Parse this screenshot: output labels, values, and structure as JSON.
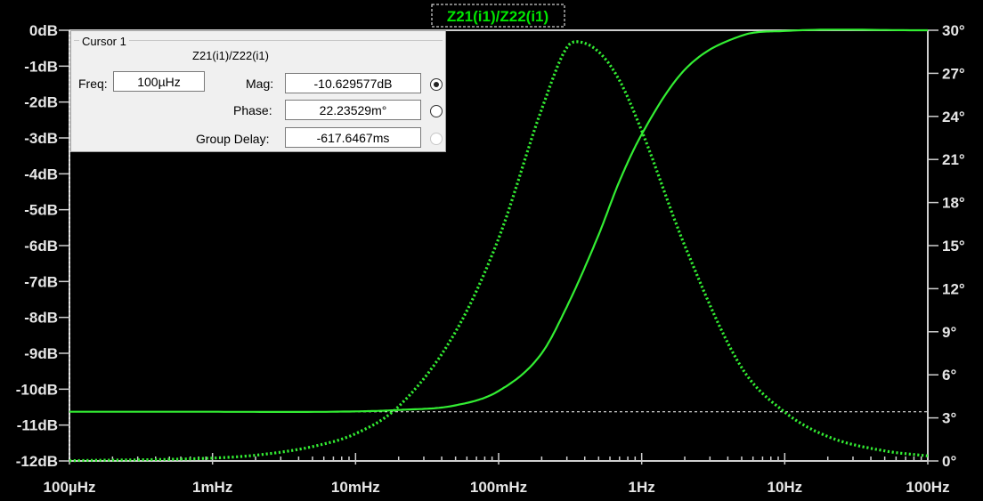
{
  "chart_data": {
    "type": "line",
    "title": "Z21(i1)/Z22(i1)",
    "xscale": "log",
    "xlim": [
      0.0001,
      100
    ],
    "x_tick_labels": [
      "100µHz",
      "1mHz",
      "10mHz",
      "100mHz",
      "1Hz",
      "10Hz",
      "100Hz"
    ],
    "left_axis": {
      "quantity": "magnitude",
      "ylim": [
        -12,
        0
      ],
      "tick_labels": [
        "0dB",
        "-1dB",
        "-2dB",
        "-3dB",
        "-4dB",
        "-5dB",
        "-6dB",
        "-7dB",
        "-8dB",
        "-9dB",
        "-10dB",
        "-11dB",
        "-12dB"
      ]
    },
    "right_axis": {
      "quantity": "phase",
      "ylim": [
        0,
        30
      ],
      "tick_labels": [
        "30°",
        "27°",
        "24°",
        "21°",
        "18°",
        "15°",
        "12°",
        "9°",
        "6°",
        "3°",
        "0°"
      ]
    },
    "series": [
      {
        "style": "solid",
        "axis": "left",
        "x": [
          0.0001,
          0.001,
          0.01,
          0.02,
          0.05,
          0.1,
          0.2,
          0.3,
          0.5,
          0.7,
          1,
          2,
          5,
          10,
          100
        ],
        "y": [
          -10.63,
          -10.63,
          -10.62,
          -10.58,
          -10.45,
          -10.05,
          -9.0,
          -7.7,
          -5.7,
          -4.2,
          -2.9,
          -1.1,
          -0.15,
          -0.02,
          0
        ]
      },
      {
        "style": "dotted",
        "axis": "right",
        "x": [
          0.0001,
          0.001,
          0.002,
          0.005,
          0.01,
          0.02,
          0.05,
          0.1,
          0.2,
          0.3,
          0.35,
          0.5,
          0.7,
          1,
          2,
          5,
          10,
          20,
          50,
          100
        ],
        "y": [
          0.02,
          0.2,
          0.4,
          1.0,
          1.9,
          3.8,
          9.0,
          15.5,
          24.5,
          28.8,
          29.2,
          28.5,
          26.5,
          23.0,
          15.0,
          6.5,
          3.4,
          1.7,
          0.7,
          0.35
        ]
      }
    ],
    "cursor_level_db": -10.63,
    "grid": false,
    "colors": {
      "trace": "#33ee33",
      "axes": "#cfcfcf",
      "background": "#000000",
      "cursor_line": "#ffffff"
    }
  },
  "cursor": {
    "title": "Cursor 1",
    "trace_name": "Z21(i1)/Z22(i1)",
    "freq_label": "Freq:",
    "freq_value": "100µHz",
    "mag_label": "Mag:",
    "mag_value": "-10.629577dB",
    "phase_label": "Phase:",
    "phase_value": "22.23529m°",
    "group_delay_label": "Group Delay:",
    "group_delay_value": "-617.6467ms"
  }
}
